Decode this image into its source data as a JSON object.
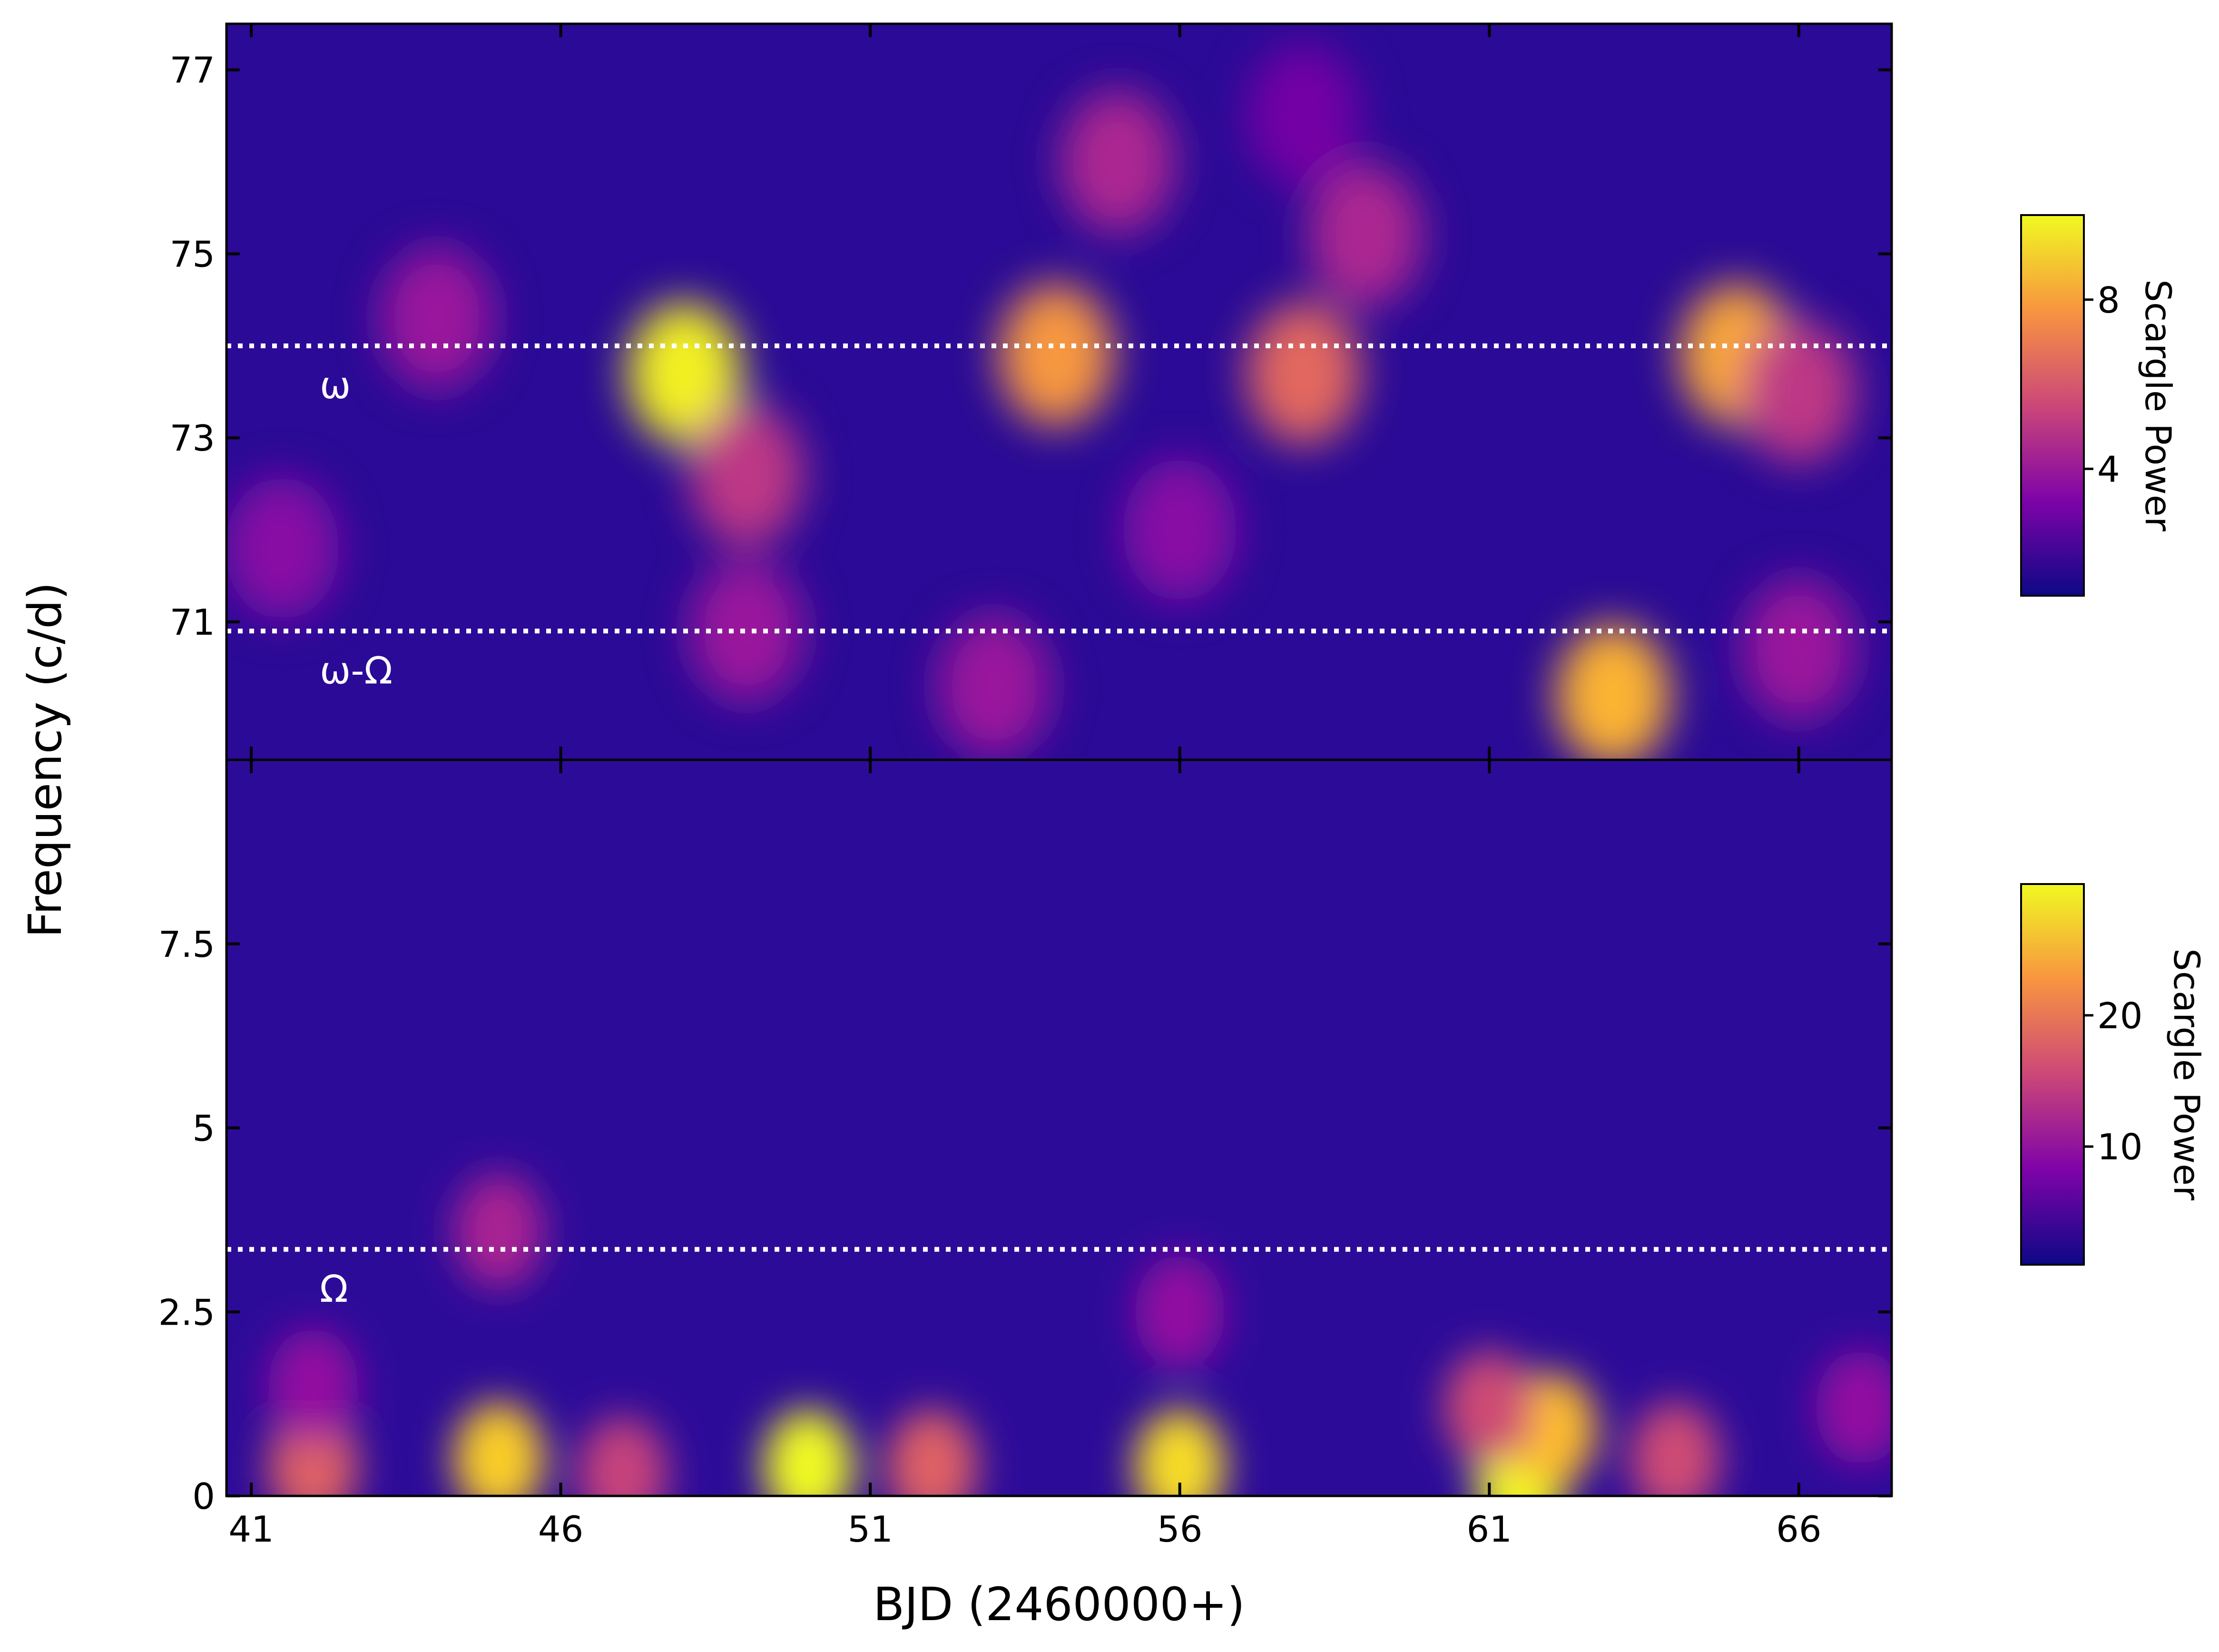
{
  "chart_data": [
    {
      "type": "heatmap",
      "panel": "top",
      "xlabel": "BJD (2460000+)",
      "ylabel": "Frequency (c/d)",
      "xlim": [
        40.6,
        67.5
      ],
      "ylim": [
        69.5,
        77.5
      ],
      "x_ticks": [
        41,
        46,
        51,
        56,
        61,
        66
      ],
      "y_ticks": [
        71,
        73,
        75,
        77
      ],
      "colormap": "plasma",
      "colorbar": {
        "label": "Scargle Power",
        "range": [
          1,
          10
        ],
        "ticks": [
          4,
          8
        ]
      },
      "reference_lines": [
        {
          "y": 74.0,
          "label": "ω",
          "style": "dotted",
          "color": "#ffffff"
        },
        {
          "y": 70.9,
          "label": "ω-Ω",
          "style": "dotted",
          "color": "#ffffff"
        }
      ],
      "hotspots": [
        {
          "x": 48.0,
          "y": 73.7,
          "power": 9.8
        },
        {
          "x": 49.0,
          "y": 72.6,
          "power": 5.0
        },
        {
          "x": 54.0,
          "y": 73.9,
          "power": 7.8
        },
        {
          "x": 58.0,
          "y": 73.7,
          "power": 6.5
        },
        {
          "x": 59.0,
          "y": 75.2,
          "power": 4.5
        },
        {
          "x": 65.0,
          "y": 73.9,
          "power": 8.2
        },
        {
          "x": 66.0,
          "y": 73.5,
          "power": 5.0
        },
        {
          "x": 63.0,
          "y": 70.2,
          "power": 8.5
        },
        {
          "x": 44.0,
          "y": 74.3,
          "power": 4.0
        },
        {
          "x": 55.0,
          "y": 76.0,
          "power": 4.5
        },
        {
          "x": 49.0,
          "y": 70.9,
          "power": 4.0
        },
        {
          "x": 41.5,
          "y": 71.8,
          "power": 3.5
        },
        {
          "x": 66.0,
          "y": 70.7,
          "power": 4.0
        },
        {
          "x": 53.0,
          "y": 70.3,
          "power": 4.0
        },
        {
          "x": 56.0,
          "y": 72.0,
          "power": 3.5
        },
        {
          "x": 58.0,
          "y": 76.5,
          "power": 3.0
        }
      ]
    },
    {
      "type": "heatmap",
      "panel": "bottom",
      "xlabel": "BJD (2460000+)",
      "ylabel": "Frequency (c/d)",
      "xlim": [
        40.6,
        67.5
      ],
      "ylim": [
        0,
        10
      ],
      "x_ticks": [
        41,
        46,
        51,
        56,
        61,
        66
      ],
      "y_ticks": [
        "0",
        "2.5",
        "5",
        "7.5"
      ],
      "y_tick_values": [
        0,
        2.5,
        5,
        7.5
      ],
      "colormap": "plasma",
      "colorbar": {
        "label": "Scargle Power",
        "range": [
          1,
          30
        ],
        "ticks": [
          10,
          20
        ]
      },
      "reference_lines": [
        {
          "y": 3.35,
          "label": "Ω",
          "style": "dotted",
          "color": "#ffffff"
        }
      ],
      "hotspots": [
        {
          "x": 42.0,
          "y": 0.4,
          "power": 18
        },
        {
          "x": 45.0,
          "y": 0.5,
          "power": 27
        },
        {
          "x": 47.0,
          "y": 0.3,
          "power": 15
        },
        {
          "x": 50.0,
          "y": 0.4,
          "power": 30
        },
        {
          "x": 52.0,
          "y": 0.4,
          "power": 18
        },
        {
          "x": 56.0,
          "y": 0.4,
          "power": 28
        },
        {
          "x": 61.5,
          "y": 0.2,
          "power": 30
        },
        {
          "x": 62.0,
          "y": 0.9,
          "power": 26
        },
        {
          "x": 61.0,
          "y": 1.2,
          "power": 16
        },
        {
          "x": 64.0,
          "y": 0.5,
          "power": 16
        },
        {
          "x": 45.0,
          "y": 3.6,
          "power": 12
        },
        {
          "x": 42.0,
          "y": 1.5,
          "power": 10
        },
        {
          "x": 67.0,
          "y": 1.2,
          "power": 10
        },
        {
          "x": 56.0,
          "y": 2.5,
          "power": 10
        }
      ]
    }
  ]
}
